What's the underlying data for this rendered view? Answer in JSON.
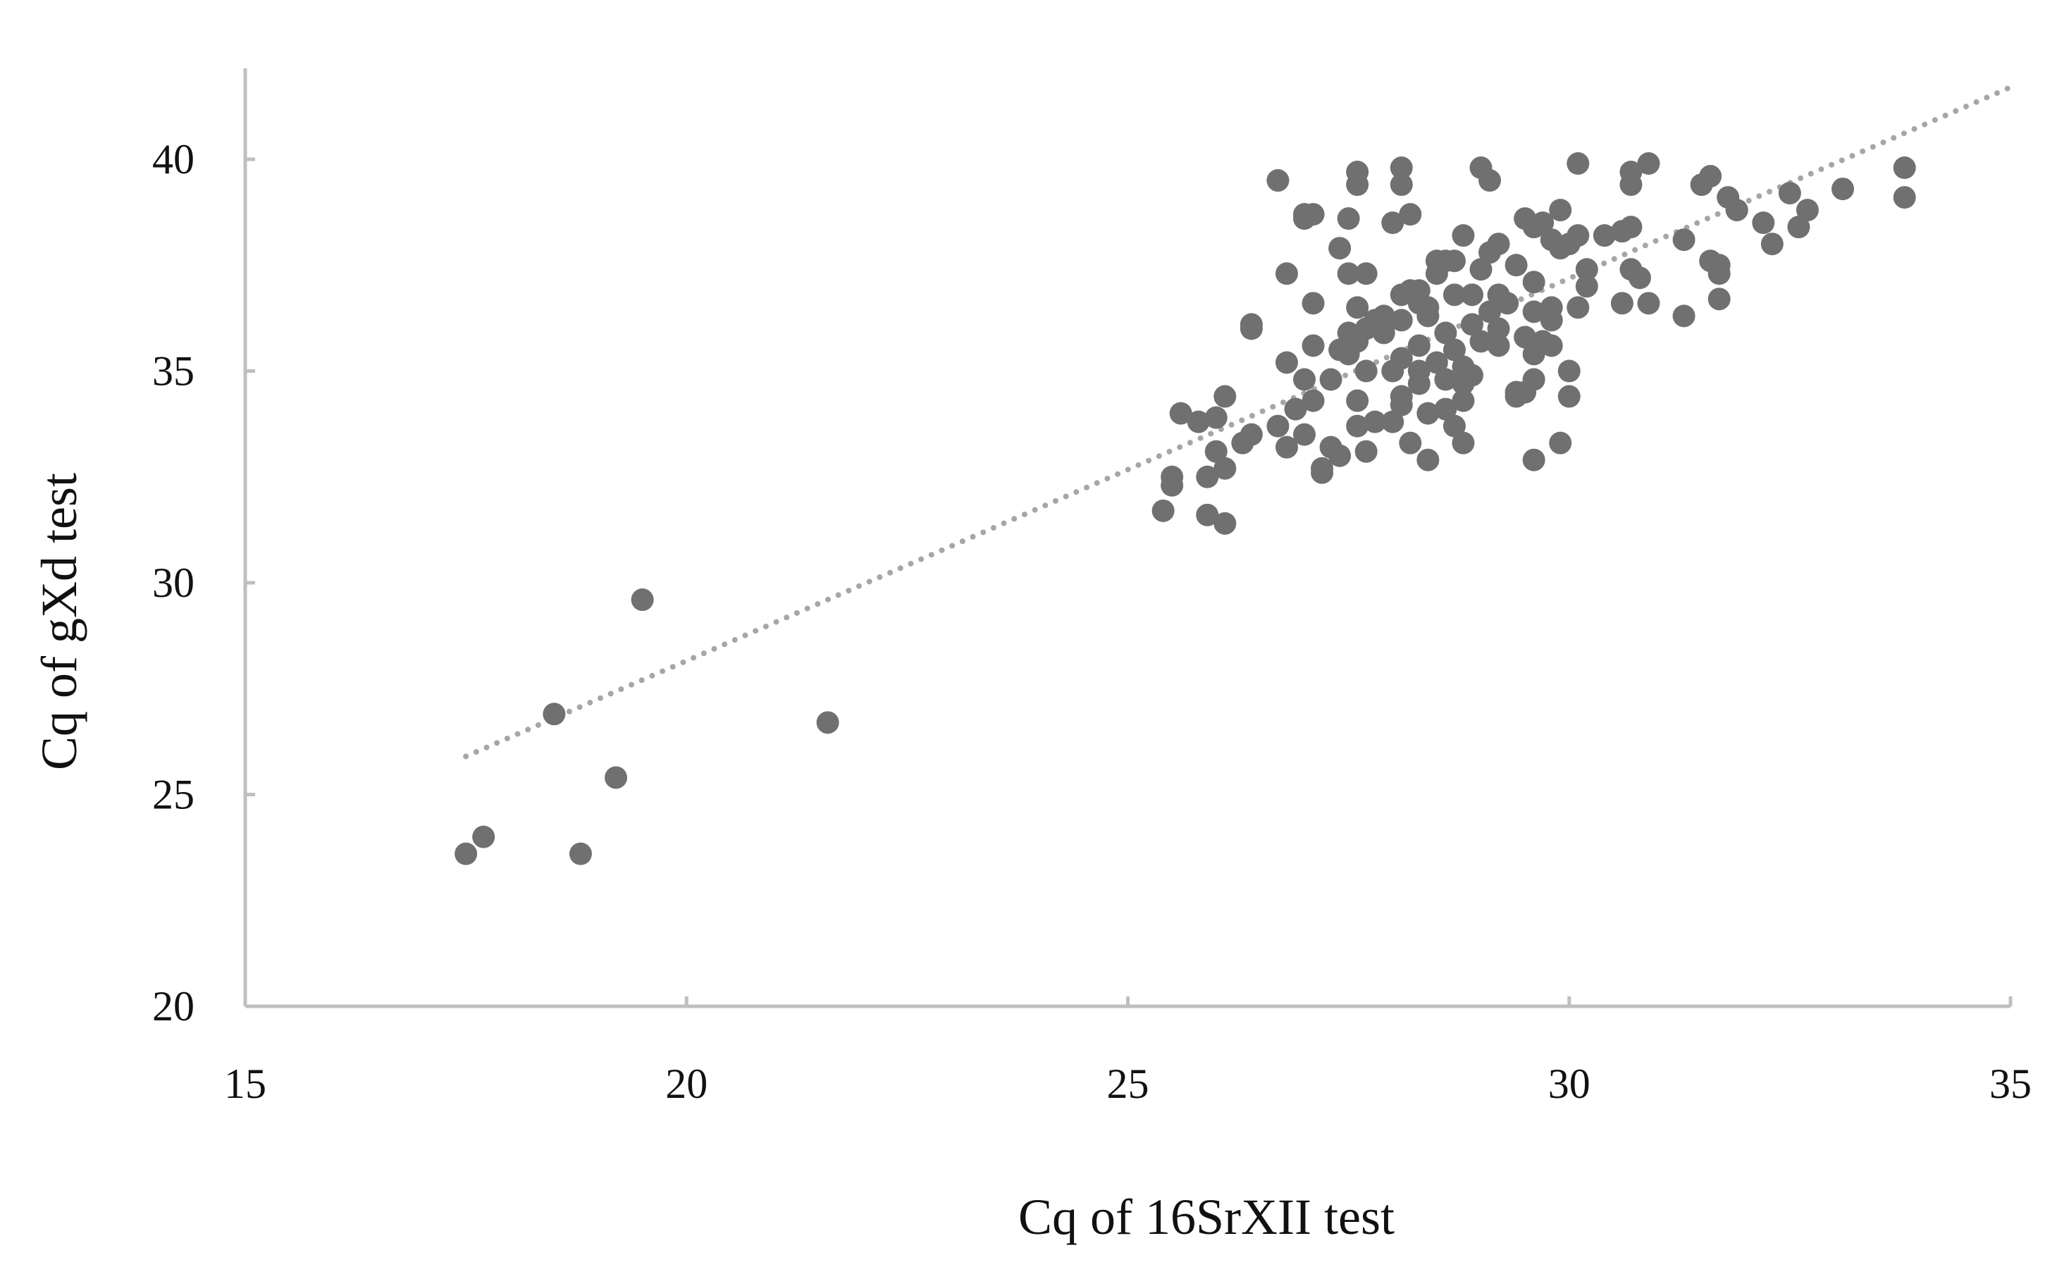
{
  "colors": {
    "point": "#707070",
    "trendline": "#a6a6a6",
    "axis": "#bfbfbf",
    "text": "#111111"
  },
  "chart_data": {
    "type": "scatter",
    "xlabel": "Cq of 16SrXII test",
    "ylabel": "Cq of gXd test",
    "xlim": [
      15,
      35
    ],
    "ylim": [
      20,
      42
    ],
    "xticks": [
      "15",
      "20",
      "25",
      "30",
      "35"
    ],
    "yticks": [
      "20",
      "25",
      "30",
      "35",
      "40"
    ],
    "grid": false,
    "legend": "none",
    "trendline": {
      "style": "dotted",
      "x": [
        17.5,
        35.0
      ],
      "y": [
        25.9,
        41.7
      ]
    },
    "series": [
      {
        "points": [
          [
            17.5,
            23.6
          ],
          [
            17.7,
            24.0
          ],
          [
            18.5,
            26.9
          ],
          [
            18.8,
            23.6
          ],
          [
            19.2,
            25.4
          ],
          [
            19.5,
            29.6
          ],
          [
            21.6,
            26.7
          ],
          [
            25.4,
            31.7
          ],
          [
            25.5,
            32.5
          ],
          [
            25.5,
            32.3
          ],
          [
            25.6,
            34.0
          ],
          [
            25.8,
            33.8
          ],
          [
            25.9,
            31.6
          ],
          [
            25.9,
            32.5
          ],
          [
            26.0,
            33.9
          ],
          [
            26.0,
            33.1
          ],
          [
            26.1,
            31.4
          ],
          [
            26.1,
            32.7
          ],
          [
            26.1,
            34.4
          ],
          [
            26.3,
            33.3
          ],
          [
            26.4,
            33.5
          ],
          [
            26.4,
            36.1
          ],
          [
            26.4,
            36.0
          ],
          [
            26.7,
            39.5
          ],
          [
            26.7,
            33.7
          ],
          [
            26.8,
            35.2
          ],
          [
            26.8,
            37.3
          ],
          [
            26.8,
            33.2
          ],
          [
            26.9,
            34.1
          ],
          [
            27.0,
            38.7
          ],
          [
            27.0,
            38.6
          ],
          [
            27.0,
            34.8
          ],
          [
            27.0,
            33.5
          ],
          [
            27.1,
            38.7
          ],
          [
            27.1,
            36.6
          ],
          [
            27.1,
            35.6
          ],
          [
            27.1,
            34.3
          ],
          [
            27.2,
            32.6
          ],
          [
            27.2,
            32.7
          ],
          [
            27.3,
            33.2
          ],
          [
            27.3,
            34.8
          ],
          [
            27.4,
            37.9
          ],
          [
            27.4,
            35.5
          ],
          [
            27.4,
            33.0
          ],
          [
            27.5,
            35.9
          ],
          [
            27.5,
            35.4
          ],
          [
            27.5,
            37.3
          ],
          [
            27.5,
            38.6
          ],
          [
            27.6,
            39.7
          ],
          [
            27.6,
            39.4
          ],
          [
            27.6,
            36.5
          ],
          [
            27.6,
            35.7
          ],
          [
            27.6,
            34.3
          ],
          [
            27.6,
            33.7
          ],
          [
            27.7,
            36.0
          ],
          [
            27.7,
            37.3
          ],
          [
            27.7,
            35.0
          ],
          [
            27.7,
            33.1
          ],
          [
            27.8,
            33.8
          ],
          [
            27.8,
            36.2
          ],
          [
            27.9,
            35.9
          ],
          [
            27.9,
            36.3
          ],
          [
            28.0,
            38.5
          ],
          [
            28.0,
            35.0
          ],
          [
            28.0,
            33.8
          ],
          [
            28.1,
            39.8
          ],
          [
            28.1,
            39.4
          ],
          [
            28.1,
            36.8
          ],
          [
            28.1,
            36.2
          ],
          [
            28.1,
            35.3
          ],
          [
            28.1,
            34.2
          ],
          [
            28.1,
            34.4
          ],
          [
            28.2,
            38.7
          ],
          [
            28.2,
            36.9
          ],
          [
            28.2,
            33.3
          ],
          [
            28.3,
            36.6
          ],
          [
            28.3,
            35.6
          ],
          [
            28.3,
            35.0
          ],
          [
            28.3,
            34.7
          ],
          [
            28.3,
            36.9
          ],
          [
            28.4,
            36.5
          ],
          [
            28.4,
            36.3
          ],
          [
            28.4,
            34.0
          ],
          [
            28.4,
            32.9
          ],
          [
            28.5,
            37.6
          ],
          [
            28.5,
            37.3
          ],
          [
            28.5,
            35.2
          ],
          [
            28.6,
            37.6
          ],
          [
            28.6,
            35.9
          ],
          [
            28.6,
            34.8
          ],
          [
            28.6,
            34.1
          ],
          [
            28.7,
            37.6
          ],
          [
            28.7,
            36.8
          ],
          [
            28.7,
            35.5
          ],
          [
            28.7,
            33.7
          ],
          [
            28.8,
            38.2
          ],
          [
            28.8,
            35.1
          ],
          [
            28.8,
            34.7
          ],
          [
            28.8,
            34.3
          ],
          [
            28.8,
            33.3
          ],
          [
            28.9,
            36.8
          ],
          [
            28.9,
            36.1
          ],
          [
            28.9,
            34.9
          ],
          [
            29.0,
            39.8
          ],
          [
            29.0,
            37.4
          ],
          [
            29.0,
            35.7
          ],
          [
            29.1,
            39.5
          ],
          [
            29.1,
            37.8
          ],
          [
            29.1,
            36.4
          ],
          [
            29.2,
            38.0
          ],
          [
            29.2,
            36.8
          ],
          [
            29.2,
            36.0
          ],
          [
            29.2,
            35.6
          ],
          [
            29.3,
            36.6
          ],
          [
            29.4,
            34.5
          ],
          [
            29.4,
            37.5
          ],
          [
            29.4,
            34.4
          ],
          [
            29.5,
            38.6
          ],
          [
            29.5,
            35.8
          ],
          [
            29.5,
            34.5
          ],
          [
            29.6,
            38.4
          ],
          [
            29.6,
            37.1
          ],
          [
            29.6,
            36.4
          ],
          [
            29.6,
            35.4
          ],
          [
            29.6,
            34.8
          ],
          [
            29.6,
            32.9
          ],
          [
            29.7,
            38.5
          ],
          [
            29.7,
            35.7
          ],
          [
            29.8,
            38.1
          ],
          [
            29.8,
            36.5
          ],
          [
            29.8,
            36.2
          ],
          [
            29.8,
            35.6
          ],
          [
            29.9,
            38.8
          ],
          [
            29.9,
            37.9
          ],
          [
            29.9,
            33.3
          ],
          [
            30.0,
            38.0
          ],
          [
            30.0,
            35.0
          ],
          [
            30.0,
            34.4
          ],
          [
            30.1,
            39.9
          ],
          [
            30.1,
            38.2
          ],
          [
            30.1,
            36.5
          ],
          [
            30.2,
            37.4
          ],
          [
            30.2,
            37.0
          ],
          [
            30.4,
            38.2
          ],
          [
            30.6,
            36.6
          ],
          [
            30.6,
            38.3
          ],
          [
            30.7,
            38.4
          ],
          [
            30.7,
            39.7
          ],
          [
            30.7,
            39.4
          ],
          [
            30.7,
            37.4
          ],
          [
            30.8,
            37.2
          ],
          [
            30.9,
            39.9
          ],
          [
            30.9,
            36.6
          ],
          [
            31.3,
            38.1
          ],
          [
            31.3,
            36.3
          ],
          [
            31.5,
            39.4
          ],
          [
            31.6,
            39.6
          ],
          [
            31.6,
            37.6
          ],
          [
            31.7,
            36.7
          ],
          [
            31.7,
            37.3
          ],
          [
            31.7,
            37.5
          ],
          [
            31.8,
            39.1
          ],
          [
            31.9,
            38.8
          ],
          [
            32.2,
            38.5
          ],
          [
            32.3,
            38.0
          ],
          [
            32.5,
            39.2
          ],
          [
            32.6,
            38.4
          ],
          [
            32.7,
            38.8
          ],
          [
            33.1,
            39.3
          ],
          [
            33.8,
            39.8
          ],
          [
            33.8,
            39.1
          ]
        ]
      }
    ]
  }
}
